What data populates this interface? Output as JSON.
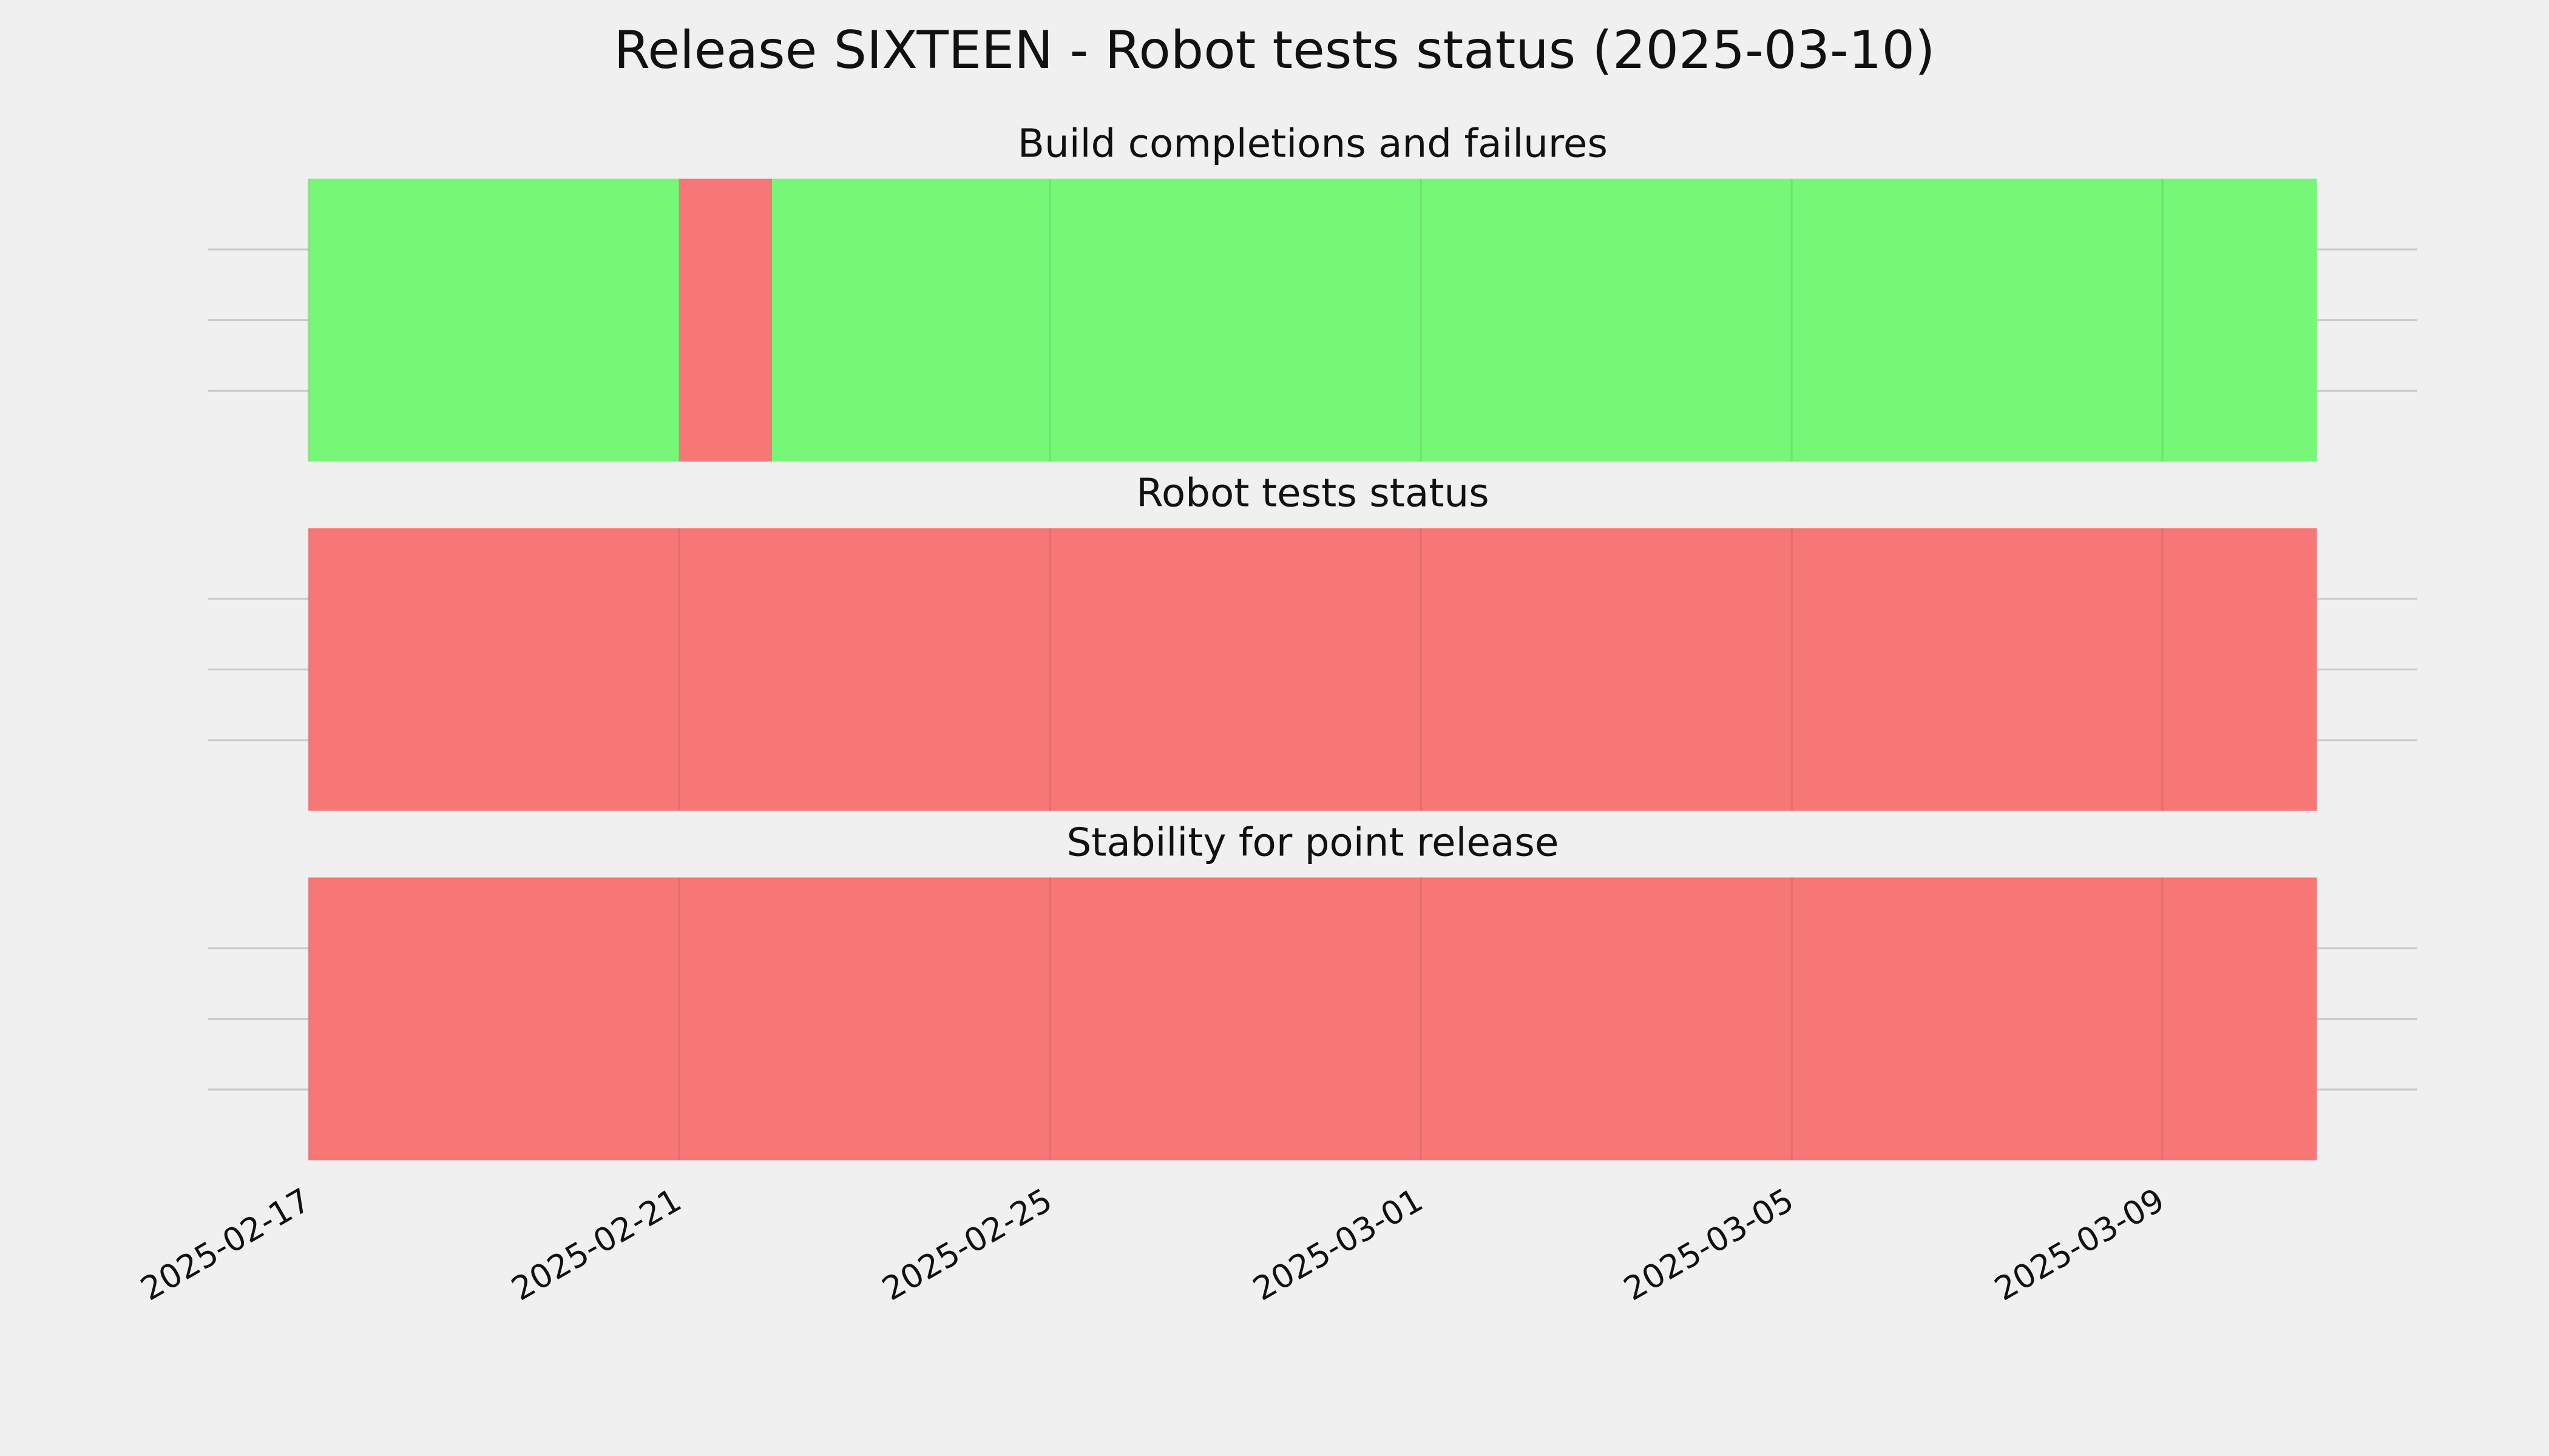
{
  "title": "Release SIXTEEN - Robot tests status (2025-03-10)",
  "chart_data": [
    {
      "type": "timeline",
      "title": "Build completions and failures",
      "segments": [
        {
          "start": "2025-02-17",
          "end": "2025-02-21",
          "color": "#77f777"
        },
        {
          "start": "2025-02-21",
          "end": "2025-02-22",
          "color": "#f77777"
        },
        {
          "start": "2025-02-22",
          "end": "2025-03-10T16:00",
          "color": "#77f777"
        }
      ],
      "xlim": [
        "2025-02-15T22:00",
        "2025-03-11T18:00"
      ],
      "xticks": [
        "2025-02-17",
        "2025-02-21",
        "2025-02-25",
        "2025-03-01",
        "2025-03-05",
        "2025-03-09"
      ],
      "ylim": [
        0,
        1
      ],
      "yticks": [
        0.25,
        0.5,
        0.75
      ],
      "grid": true
    },
    {
      "type": "timeline",
      "title": "Robot tests status",
      "segments": [
        {
          "start": "2025-02-17",
          "end": "2025-03-10T16:00",
          "color": "#f77777"
        }
      ],
      "xlim": [
        "2025-02-15T22:00",
        "2025-03-11T18:00"
      ],
      "xticks": [
        "2025-02-17",
        "2025-02-21",
        "2025-02-25",
        "2025-03-01",
        "2025-03-05",
        "2025-03-09"
      ],
      "ylim": [
        0,
        1
      ],
      "yticks": [
        0.25,
        0.5,
        0.75
      ],
      "grid": true
    },
    {
      "type": "timeline",
      "title": "Stability for point release",
      "segments": [
        {
          "start": "2025-02-17",
          "end": "2025-03-10T16:00",
          "color": "#f77777"
        }
      ],
      "xlim": [
        "2025-02-15T22:00",
        "2025-03-11T18:00"
      ],
      "xticks": [
        "2025-02-17",
        "2025-02-21",
        "2025-02-25",
        "2025-03-01",
        "2025-03-05",
        "2025-03-09"
      ],
      "ylim": [
        0,
        1
      ],
      "yticks": [
        0.25,
        0.5,
        0.75
      ],
      "grid": true,
      "show_xtick_labels": true
    }
  ]
}
